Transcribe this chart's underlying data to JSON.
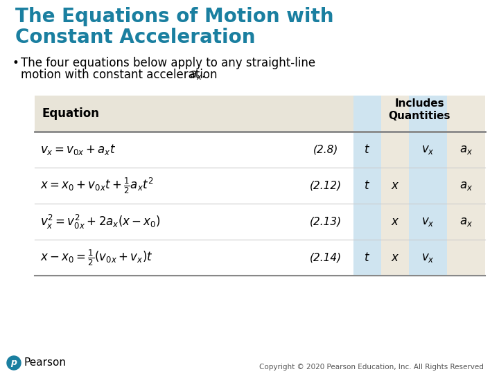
{
  "title_line1": "The Equations of Motion with",
  "title_line2": "Constant Acceleration",
  "title_color": "#1a7fa0",
  "bg_color": "#ffffff",
  "bullet_text_line1": "The four equations below apply to any straight-line",
  "bullet_text_line2": "motion with constant acceleration ",
  "col_header_eq": "Equation",
  "equations": [
    {
      "eq": "$v_x = v_{0x} + a_x t$",
      "num": "(2.8)",
      "t": "$t$",
      "x": "",
      "vx": "$v_x$",
      "ax": "$a_x$"
    },
    {
      "eq": "$x = x_0 + v_{0x}t + \\frac{1}{2}a_x t^2$",
      "num": "(2.12)",
      "t": "$t$",
      "x": "$x$",
      "vx": "",
      "ax": "$a_x$"
    },
    {
      "eq": "$v_x^2 = v_{0x}^2 + 2a_x(x - x_0)$",
      "num": "(2.13)",
      "t": "",
      "x": "$x$",
      "vx": "$v_x$",
      "ax": "$a_x$"
    },
    {
      "eq": "$x - x_0 = \\frac{1}{2}(v_{0x} + v_x)t$",
      "num": "(2.14)",
      "t": "$t$",
      "x": "$x$",
      "vx": "$v_x$",
      "ax": ""
    }
  ],
  "col_t_bg": "#cfe4f0",
  "col_x_bg": "#ede8dc",
  "col_vx_bg": "#cfe4f0",
  "col_ax_bg": "#ede8dc",
  "header_eq_bg": "#e8e4d8",
  "footer_text": "Copyright © 2020 Pearson Education, Inc. All Rights Reserved",
  "pearson_text": "Pearson",
  "pearson_color": "#1a7fa0"
}
